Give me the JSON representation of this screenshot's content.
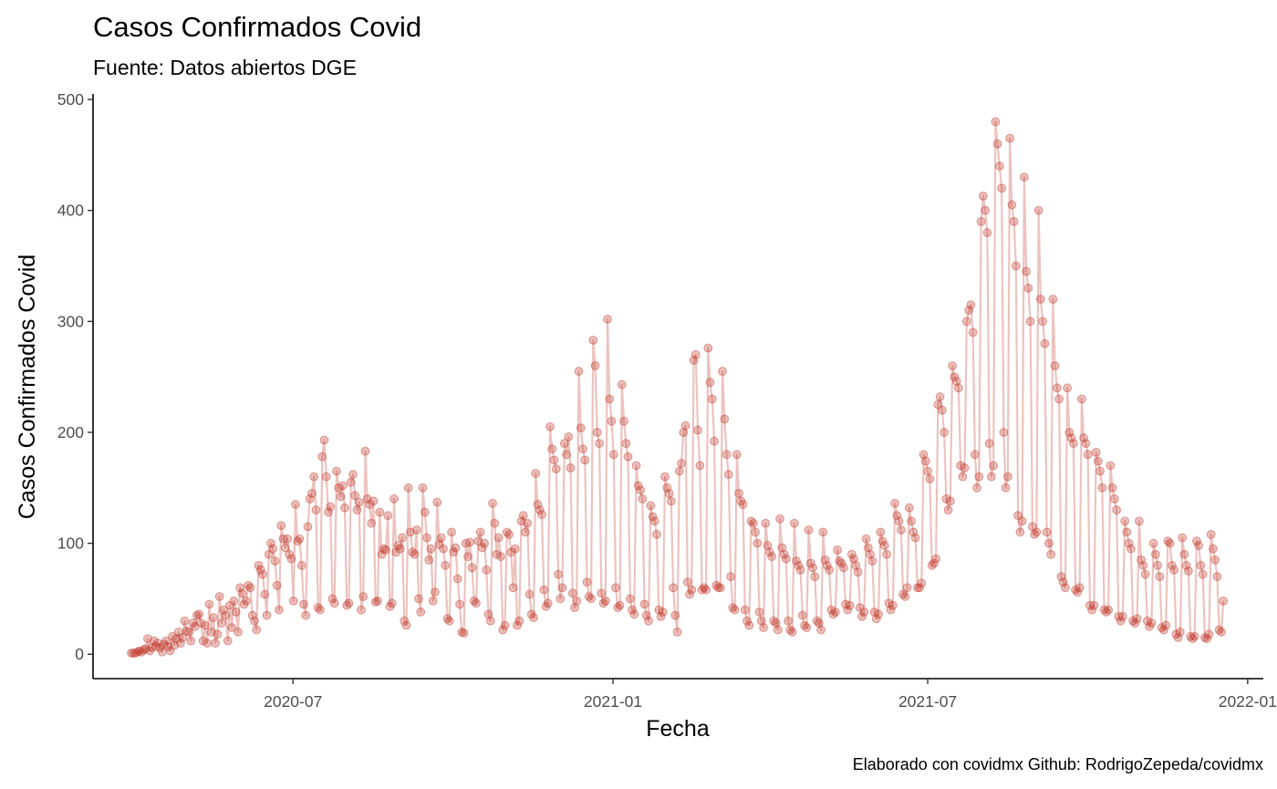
{
  "chart_data": {
    "type": "line",
    "title": "Casos Confirmados Covid",
    "subtitle": "Fuente: Datos abiertos DGE",
    "xlabel": "Fecha",
    "ylabel": "Casos Confirmados Covid",
    "caption": "Elaborado con covidmx Github: RodrigoZepeda/covidmx",
    "series_color": "#c0392b",
    "x_start": "2020-03-30",
    "x_end": "2021-12-18",
    "xlim": [
      "2020-03-08",
      "2022-01-10"
    ],
    "ylim": [
      -22,
      505
    ],
    "x_ticks": [
      "2020-07-01",
      "2021-01-01",
      "2021-07-01",
      "2022-01-01"
    ],
    "x_tick_labels": [
      "2020-07",
      "2021-01",
      "2021-07",
      "2022-01"
    ],
    "y_ticks": [
      0,
      100,
      200,
      300,
      400,
      500
    ],
    "y_tick_labels": [
      "0",
      "100",
      "200",
      "300",
      "400",
      "500"
    ],
    "values": [
      1,
      1,
      1,
      2,
      3,
      2,
      4,
      5,
      14,
      3,
      6,
      12,
      7,
      10,
      6,
      2,
      9,
      12,
      7,
      3,
      16,
      8,
      14,
      20,
      10,
      15,
      30,
      21,
      20,
      12,
      28,
      25,
      35,
      36,
      28,
      12,
      26,
      10,
      45,
      20,
      33,
      10,
      18,
      52,
      28,
      40,
      35,
      12,
      44,
      24,
      48,
      38,
      20,
      60,
      55,
      45,
      48,
      62,
      60,
      35,
      30,
      22,
      80,
      76,
      72,
      54,
      35,
      90,
      100,
      95,
      84,
      62,
      40,
      116,
      104,
      96,
      104,
      90,
      86,
      48,
      135,
      102,
      104,
      80,
      45,
      35,
      115,
      140,
      145,
      160,
      130,
      42,
      40,
      178,
      193,
      160,
      128,
      133,
      50,
      46,
      165,
      150,
      142,
      152,
      132,
      44,
      46,
      155,
      162,
      143,
      130,
      137,
      40,
      52,
      183,
      140,
      135,
      118,
      138,
      47,
      48,
      128,
      90,
      95,
      94,
      125,
      43,
      46,
      140,
      92,
      98,
      95,
      105,
      30,
      26,
      150,
      110,
      92,
      90,
      112,
      50,
      38,
      150,
      128,
      105,
      85,
      95,
      48,
      56,
      137,
      99,
      105,
      95,
      80,
      32,
      30,
      110,
      92,
      96,
      68,
      45,
      20,
      19,
      100,
      88,
      101,
      78,
      48,
      46,
      102,
      110,
      96,
      100,
      76,
      36,
      30,
      136,
      118,
      90,
      105,
      88,
      22,
      26,
      110,
      108,
      92,
      60,
      95,
      26,
      30,
      120,
      125,
      110,
      118,
      54,
      36,
      33,
      163,
      135,
      130,
      126,
      58,
      43,
      46,
      205,
      185,
      175,
      167,
      72,
      50,
      60,
      190,
      180,
      196,
      168,
      55,
      42,
      48,
      255,
      204,
      185,
      175,
      65,
      52,
      50,
      283,
      260,
      200,
      190,
      55,
      46,
      48,
      302,
      230,
      210,
      180,
      60,
      42,
      44,
      243,
      210,
      190,
      178,
      50,
      40,
      36,
      170,
      152,
      148,
      140,
      45,
      35,
      30,
      134,
      124,
      120,
      108,
      40,
      34,
      38,
      160,
      150,
      145,
      138,
      60,
      35,
      20,
      165,
      172,
      200,
      206,
      65,
      54,
      58,
      265,
      270,
      202,
      170,
      58,
      60,
      58,
      276,
      245,
      230,
      192,
      62,
      60,
      60,
      255,
      212,
      180,
      162,
      70,
      42,
      40,
      180,
      145,
      138,
      135,
      40,
      30,
      26,
      120,
      118,
      110,
      100,
      38,
      30,
      24,
      118,
      98,
      92,
      88,
      30,
      28,
      22,
      122,
      96,
      90,
      86,
      30,
      22,
      20,
      118,
      84,
      80,
      76,
      35,
      26,
      24,
      112,
      82,
      78,
      70,
      30,
      28,
      22,
      110,
      85,
      80,
      76,
      40,
      36,
      38,
      94,
      84,
      82,
      78,
      45,
      40,
      44,
      90,
      86,
      80,
      74,
      42,
      34,
      38,
      104,
      96,
      90,
      84,
      38,
      32,
      36,
      110,
      102,
      98,
      90,
      46,
      40,
      44,
      136,
      125,
      120,
      112,
      54,
      52,
      60,
      132,
      120,
      110,
      105,
      60,
      60,
      64,
      180,
      174,
      165,
      158,
      80,
      82,
      86,
      225,
      232,
      220,
      200,
      140,
      130,
      138,
      260,
      250,
      246,
      240,
      170,
      160,
      168,
      300,
      310,
      315,
      290,
      180,
      150,
      160,
      390,
      413,
      400,
      380,
      190,
      160,
      170,
      480,
      460,
      440,
      420,
      200,
      150,
      160,
      465,
      405,
      390,
      350,
      125,
      110,
      120,
      430,
      345,
      330,
      300,
      115,
      108,
      110,
      400,
      320,
      300,
      280,
      110,
      100,
      90,
      320,
      260,
      240,
      230,
      70,
      65,
      60,
      240,
      200,
      195,
      190,
      58,
      56,
      60,
      230,
      195,
      190,
      180,
      44,
      40,
      44,
      182,
      174,
      165,
      150,
      40,
      38,
      40,
      170,
      150,
      140,
      130,
      34,
      30,
      34,
      120,
      110,
      100,
      95,
      30,
      28,
      32,
      120,
      85,
      80,
      72,
      30,
      25,
      28,
      100,
      90,
      80,
      70,
      24,
      22,
      26,
      102,
      100,
      80,
      76,
      18,
      15,
      20,
      105,
      90,
      80,
      75,
      16,
      14,
      16,
      102,
      98,
      80,
      72,
      15,
      14,
      18,
      108,
      95,
      85,
      70,
      22,
      20,
      48
    ]
  }
}
